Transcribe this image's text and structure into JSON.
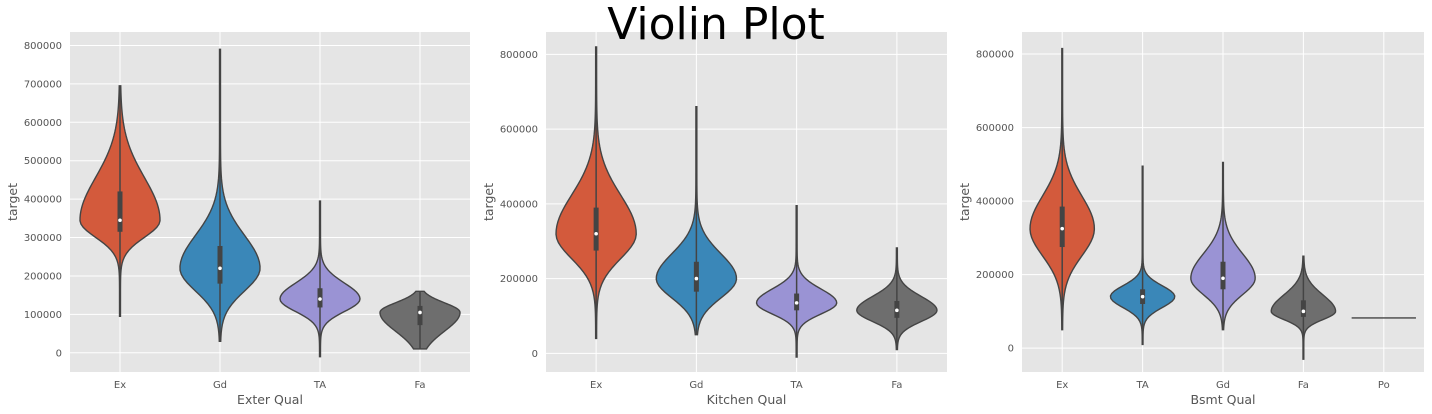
{
  "title": "Violin Plot",
  "colors": {
    "panel_bg": "#e5e5e5",
    "grid": "#ffffff",
    "outline": "#444444",
    "palette": [
      "#d35a3c",
      "#3a87b8",
      "#9a93d4",
      "#6e6e6e",
      "#6e6e6e"
    ]
  },
  "chart_data": [
    {
      "type": "violin",
      "xlabel": "Exter Qual",
      "ylabel": "target",
      "ylim": [
        -50000,
        835000
      ],
      "yticks": [
        0,
        100000,
        200000,
        300000,
        400000,
        500000,
        600000,
        700000,
        800000
      ],
      "ytick_labels": [
        "0",
        "100000",
        "200000",
        "300000",
        "400000",
        "500000",
        "600000",
        "700000",
        "800000"
      ],
      "grid": true,
      "categories": [
        "Ex",
        "Gd",
        "TA",
        "Fa"
      ],
      "violins": [
        {
          "name": "Ex",
          "min": 95000,
          "q1": 315000,
          "median": 345000,
          "q3": 420000,
          "max": 695000
        },
        {
          "name": "Gd",
          "min": 30000,
          "q1": 180000,
          "median": 220000,
          "q3": 278000,
          "max": 790000
        },
        {
          "name": "TA",
          "min": -10000,
          "q1": 118000,
          "median": 140000,
          "q3": 168000,
          "max": 395000
        },
        {
          "name": "Fa",
          "min": 10000,
          "q1": 72000,
          "median": 105000,
          "q3": 122000,
          "max": 160000
        }
      ]
    },
    {
      "type": "violin",
      "xlabel": "Kitchen Qual",
      "ylabel": "target",
      "ylim": [
        -50000,
        860000
      ],
      "yticks": [
        0,
        200000,
        400000,
        600000,
        800000
      ],
      "ytick_labels": [
        "0",
        "200000",
        "400000",
        "600000",
        "800000"
      ],
      "grid": true,
      "categories": [
        "Ex",
        "Gd",
        "TA",
        "Fa"
      ],
      "violins": [
        {
          "name": "Ex",
          "min": 40000,
          "q1": 275000,
          "median": 320000,
          "q3": 390000,
          "max": 820000
        },
        {
          "name": "Gd",
          "min": 50000,
          "q1": 165000,
          "median": 200000,
          "q3": 245000,
          "max": 660000
        },
        {
          "name": "TA",
          "min": -10000,
          "q1": 115000,
          "median": 135000,
          "q3": 160000,
          "max": 395000
        },
        {
          "name": "Fa",
          "min": 10000,
          "q1": 95000,
          "median": 115000,
          "q3": 140000,
          "max": 282000
        }
      ]
    },
    {
      "type": "violin",
      "xlabel": "Bsmt Qual",
      "ylabel": "target",
      "ylim": [
        -65000,
        860000
      ],
      "yticks": [
        0,
        200000,
        400000,
        600000,
        800000
      ],
      "ytick_labels": [
        "0",
        "200000",
        "400000",
        "600000",
        "800000"
      ],
      "grid": true,
      "categories": [
        "Ex",
        "TA",
        "Gd",
        "Fa",
        "Po"
      ],
      "violins": [
        {
          "name": "Ex",
          "min": 50000,
          "q1": 275000,
          "median": 325000,
          "q3": 385000,
          "max": 815000
        },
        {
          "name": "TA",
          "min": 10000,
          "q1": 120000,
          "median": 140000,
          "q3": 160000,
          "max": 495000
        },
        {
          "name": "Gd",
          "min": 50000,
          "q1": 160000,
          "median": 190000,
          "q3": 235000,
          "max": 505000
        },
        {
          "name": "Fa",
          "min": -30000,
          "q1": 85000,
          "median": 100000,
          "q3": 130000,
          "max": 250000
        },
        {
          "name": "Po",
          "min": 82000,
          "q1": 82000,
          "median": 82000,
          "q3": 82000,
          "max": 82000
        }
      ]
    }
  ]
}
